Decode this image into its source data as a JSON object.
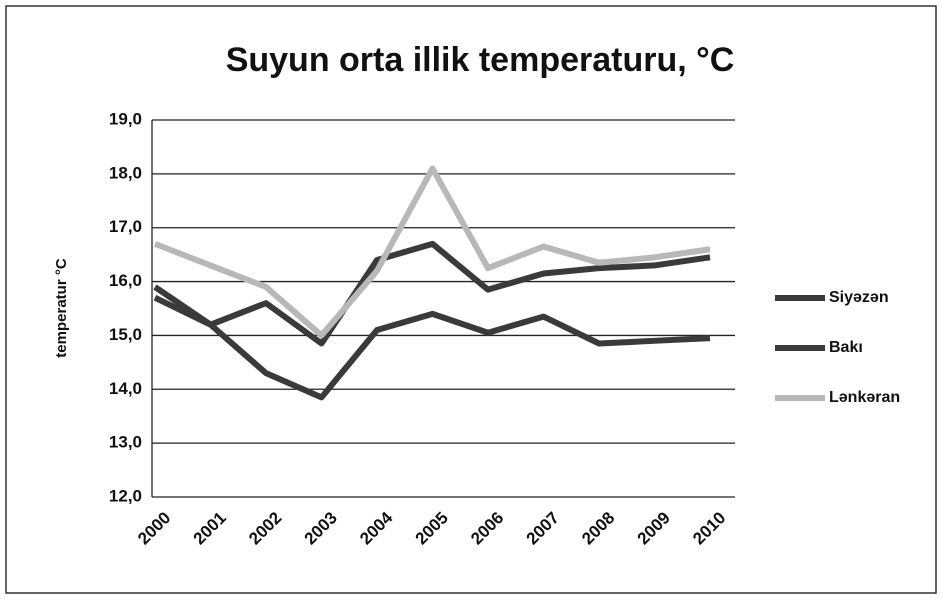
{
  "chart_data": {
    "type": "line",
    "title": "Suyun orta illik temperaturu, °C",
    "y_label": "temperatur °C",
    "categories": [
      "2000",
      "2001",
      "2002",
      "2003",
      "2004",
      "2005",
      "2006",
      "2007",
      "2008",
      "2009",
      "2010"
    ],
    "series": [
      {
        "name": "Siyəzən",
        "color": "#3a3a3a",
        "values": [
          15.7,
          15.2,
          14.3,
          13.85,
          15.1,
          15.4,
          15.05,
          15.35,
          14.85,
          14.9,
          14.95
        ]
      },
      {
        "name": "Bakı",
        "color": "#3a3a3a",
        "values": [
          15.9,
          15.2,
          15.6,
          14.85,
          16.4,
          16.7,
          15.85,
          16.15,
          16.25,
          16.3,
          16.45
        ]
      },
      {
        "name": "Lənkəran",
        "color": "#b8b8b8",
        "values": [
          16.7,
          16.3,
          15.9,
          15.0,
          16.2,
          18.1,
          16.25,
          16.65,
          16.35,
          16.45,
          16.6
        ]
      }
    ],
    "ylim": [
      12,
      19
    ],
    "yticks": [
      {
        "value": 12,
        "label": "12,0"
      },
      {
        "value": 13,
        "label": "13,0"
      },
      {
        "value": 14,
        "label": "14,0"
      },
      {
        "value": 15,
        "label": "15,0"
      },
      {
        "value": 16,
        "label": "16,0"
      },
      {
        "value": 17,
        "label": "17,0"
      },
      {
        "value": 18,
        "label": "18,0"
      },
      {
        "value": 19,
        "label": "19,0"
      }
    ],
    "grid": true,
    "legend": "right"
  }
}
